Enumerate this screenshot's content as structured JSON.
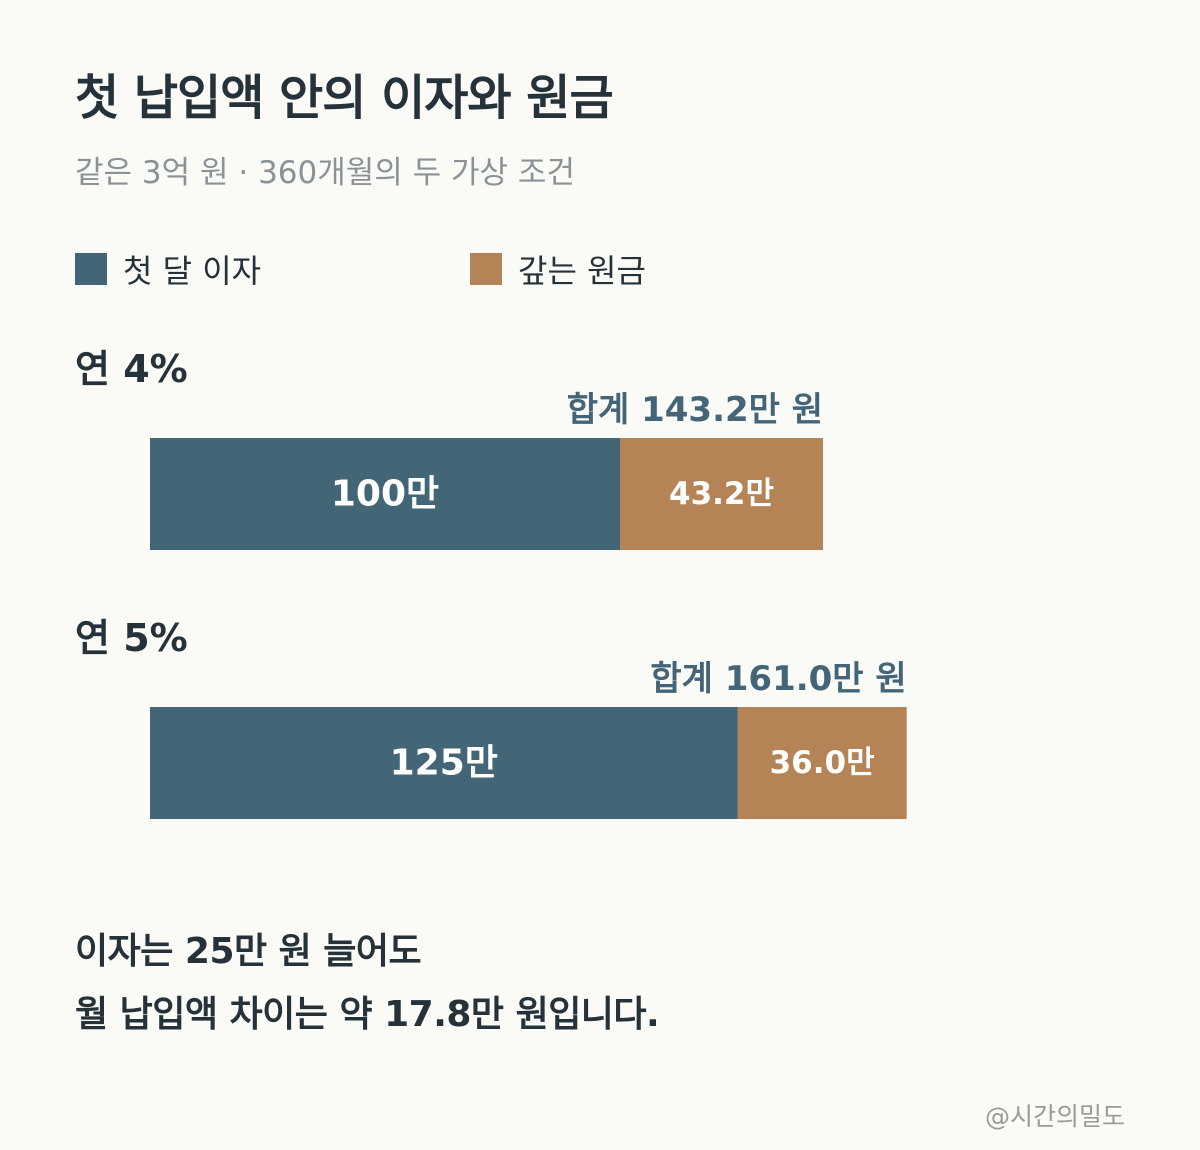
{
  "title": "첫 납입액 안의 이자와 원금",
  "subtitle": "같은 3억 원 · 360개월의 두 가상 조건",
  "legend": [
    {
      "label": "첫 달 이자",
      "color": "#436677"
    },
    {
      "label": "갚는 원금",
      "color": "#b58456"
    }
  ],
  "chart_data": {
    "type": "bar",
    "orientation": "horizontal",
    "stacked": true,
    "unit": "만 원",
    "categories": [
      "연 4%",
      "연 5%"
    ],
    "series": [
      {
        "name": "첫 달 이자",
        "values": [
          100,
          125
        ],
        "labels": [
          "100만",
          "125만"
        ],
        "color": "#436677"
      },
      {
        "name": "갚는 원금",
        "values": [
          43.2,
          36.0
        ],
        "labels": [
          "43.2만",
          "36.0만"
        ],
        "color": "#b58456"
      }
    ],
    "totals": [
      143.2,
      161.0
    ],
    "total_labels": [
      "합계 143.2만 원",
      "합계 161.0만 원"
    ],
    "xlim": [
      0,
      161.0
    ]
  },
  "footer": {
    "line1": "이자는 25만 원 늘어도",
    "line2": "월 납입액 차이는 약 17.8만 원입니다."
  },
  "credit": "@시간의밀도"
}
